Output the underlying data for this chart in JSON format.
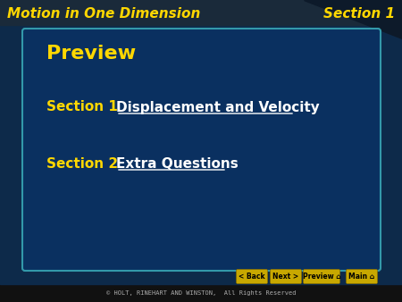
{
  "title_left": "Motion in One Dimension",
  "title_right": "Section 1",
  "header_bg": "#1a2a3a",
  "header_text_color": "#FFD700",
  "main_bg": "#0d2a4a",
  "card_bg": "#0a3060",
  "card_border_color": "#3399aa",
  "preview_text": "Preview",
  "preview_color": "#FFD700",
  "section1_label": "Section 1",
  "section1_link": "Displacement and Velocity",
  "section1_label_color": "#FFD700",
  "section1_link_color": "#FFFFFF",
  "section2_label": "Section 2",
  "section2_link": "Extra Questions",
  "section2_label_color": "#FFD700",
  "section2_link_color": "#FFFFFF",
  "footer_bg": "#000000",
  "footer_text": "© HOLT, RINEHART AND WINSTON,  All Rights Reserved",
  "footer_text_color": "#AAAAAA",
  "nav_buttons": [
    "< Back",
    "Next >",
    "Preview ⌂",
    "Main ⌂"
  ],
  "nav_bg": "#C8A800",
  "nav_text_color": "#000000",
  "corner_bg": "#0d1a2a"
}
